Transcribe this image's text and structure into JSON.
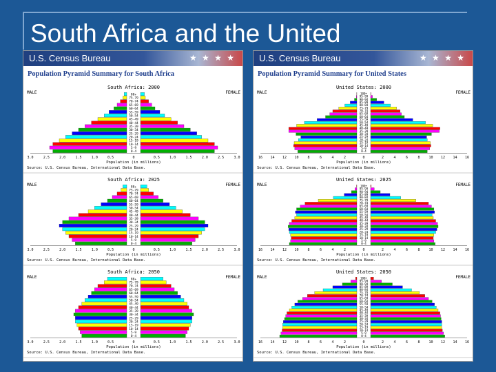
{
  "slide": {
    "title": "South Africa and the United"
  },
  "colors": {
    "background": "#1c5896",
    "panel_heading": "#1d3d8c",
    "bar_cycle": [
      "#00b000",
      "#ff00ff",
      "#ff0000",
      "#ffff00",
      "#00ffff",
      "#0000ff"
    ]
  },
  "panels": [
    {
      "banner": "U.S. Census Bureau",
      "heading": "Population Pyramid Summary for South Africa"
    },
    {
      "banner": "U.S. Census Bureau",
      "heading": "Population Pyramid Summary for United States"
    }
  ],
  "chart_data": [
    {
      "type": "bar",
      "title": "South Africa: 2000",
      "left_label": "MALE",
      "right_label": "FEMALE",
      "xlabel": "Population (in millions)",
      "source": "Source: U.S. Census Bureau, International Data Base.",
      "xticks": [
        "3.0",
        "2.5",
        "2.0",
        "1.5",
        "1.0",
        "0.5",
        "0",
        "0.5",
        "1.0",
        "1.5",
        "2.0",
        "2.5",
        "3.0"
      ],
      "xmax": 3.0,
      "age_groups": [
        "0-4",
        "5-9",
        "10-14",
        "15-19",
        "20-24",
        "25-29",
        "30-34",
        "35-39",
        "40-44",
        "45-49",
        "50-54",
        "55-59",
        "60-64",
        "65-69",
        "70-74",
        "75-79",
        "80+"
      ],
      "series": [
        {
          "name": "MALE",
          "values": [
            2.3,
            2.4,
            2.3,
            2.1,
            1.9,
            1.7,
            1.5,
            1.3,
            1.1,
            0.9,
            0.7,
            0.55,
            0.4,
            0.3,
            0.2,
            0.12,
            0.08
          ]
        },
        {
          "name": "FEMALE",
          "values": [
            2.3,
            2.4,
            2.3,
            2.1,
            1.9,
            1.75,
            1.55,
            1.35,
            1.15,
            0.95,
            0.75,
            0.6,
            0.45,
            0.35,
            0.25,
            0.15,
            0.12
          ]
        }
      ]
    },
    {
      "type": "bar",
      "title": "South Africa: 2025",
      "left_label": "MALE",
      "right_label": "FEMALE",
      "xlabel": "Population (in millions)",
      "source": "Source: U.S. Census Bureau, International Data Base.",
      "xticks": [
        "3.0",
        "2.5",
        "2.0",
        "1.5",
        "1.0",
        "0.5",
        "0",
        "0.5",
        "1.0",
        "1.5",
        "2.0",
        "2.5",
        "3.0"
      ],
      "xmax": 3.0,
      "age_groups": [
        "0-4",
        "5-9",
        "10-14",
        "15-19",
        "20-24",
        "25-29",
        "30-34",
        "35-39",
        "40-44",
        "45-49",
        "50-54",
        "55-59",
        "60-64",
        "65-69",
        "70-74",
        "75-79",
        "80+"
      ],
      "series": [
        {
          "name": "MALE",
          "values": [
            1.6,
            1.7,
            1.8,
            1.9,
            2.0,
            2.1,
            2.0,
            1.8,
            1.5,
            1.2,
            1.0,
            0.8,
            0.6,
            0.45,
            0.3,
            0.18,
            0.12
          ]
        },
        {
          "name": "FEMALE",
          "values": [
            1.6,
            1.7,
            1.8,
            1.9,
            2.0,
            2.1,
            2.0,
            1.8,
            1.55,
            1.3,
            1.1,
            0.9,
            0.7,
            0.55,
            0.4,
            0.25,
            0.2
          ]
        }
      ]
    },
    {
      "type": "bar",
      "title": "South Africa: 2050",
      "left_label": "MALE",
      "right_label": "FEMALE",
      "xlabel": "Population (in millions)",
      "source": "Source: U.S. Census Bureau, International Data Base.",
      "xticks": [
        "3.0",
        "2.5",
        "2.0",
        "1.5",
        "1.0",
        "0.5",
        "0",
        "0.5",
        "1.0",
        "1.5",
        "2.0",
        "2.5",
        "3.0"
      ],
      "xmax": 3.0,
      "age_groups": [
        "0-4",
        "5-9",
        "10-14",
        "15-19",
        "20-24",
        "25-29",
        "30-34",
        "35-39",
        "40-44",
        "45-49",
        "50-54",
        "55-59",
        "60-64",
        "65-69",
        "70-74",
        "75-79",
        "80+"
      ],
      "series": [
        {
          "name": "MALE",
          "values": [
            1.4,
            1.45,
            1.5,
            1.55,
            1.6,
            1.6,
            1.65,
            1.6,
            1.5,
            1.4,
            1.3,
            1.2,
            1.1,
            1.0,
            0.9,
            0.7,
            0.6
          ]
        },
        {
          "name": "FEMALE",
          "values": [
            1.4,
            1.45,
            1.5,
            1.55,
            1.6,
            1.6,
            1.65,
            1.6,
            1.5,
            1.45,
            1.35,
            1.25,
            1.15,
            1.05,
            0.95,
            0.8,
            0.7
          ]
        }
      ]
    },
    {
      "type": "bar",
      "title": "United States: 2000",
      "left_label": "MALE",
      "right_label": "FEMALE",
      "xlabel": "Population (in millions)",
      "source": "Source: U.S. Census Bureau, International Data Base.",
      "xticks": [
        "16",
        "14",
        "12",
        "10",
        "8",
        "6",
        "4",
        "2",
        "0",
        "2",
        "4",
        "6",
        "8",
        "10",
        "12",
        "14",
        "16"
      ],
      "xmax": 16,
      "age_groups": [
        "0-4",
        "5-9",
        "10-14",
        "15-19",
        "20-24",
        "25-29",
        "30-34",
        "35-39",
        "40-44",
        "45-49",
        "50-54",
        "55-59",
        "60-64",
        "65-69",
        "70-74",
        "75-79",
        "80-84",
        "85-89",
        "90-94",
        "95-99",
        "100+"
      ],
      "series": [
        {
          "name": "MALE",
          "values": [
            9.8,
            10.3,
            10.5,
            10.4,
            9.7,
            9.3,
            10.1,
            11.3,
            11.3,
            10.0,
            8.7,
            6.6,
            5.2,
            4.5,
            4.0,
            3.0,
            2.0,
            1.1,
            0.4,
            0.1,
            0.02
          ]
        },
        {
          "name": "FEMALE",
          "values": [
            9.4,
            9.8,
            10.0,
            9.9,
            9.4,
            9.3,
            10.1,
            11.4,
            11.5,
            10.3,
            9.1,
            7.0,
            5.6,
            5.1,
            4.9,
            4.3,
            3.3,
            2.2,
            1.0,
            0.3,
            0.05
          ]
        }
      ]
    },
    {
      "type": "bar",
      "title": "United States: 2025",
      "left_label": "MALE",
      "right_label": "FEMALE",
      "xlabel": "Population (in millions)",
      "source": "Source: U.S. Census Bureau, International Data Base.",
      "xticks": [
        "16",
        "14",
        "12",
        "10",
        "8",
        "6",
        "4",
        "2",
        "0",
        "2",
        "4",
        "6",
        "8",
        "10",
        "12",
        "14",
        "16"
      ],
      "xmax": 16,
      "age_groups": [
        "0-4",
        "5-9",
        "10-14",
        "15-19",
        "20-24",
        "25-29",
        "30-34",
        "35-39",
        "40-44",
        "45-49",
        "50-54",
        "55-59",
        "60-64",
        "65-69",
        "70-74",
        "75-79",
        "80-84",
        "85-89",
        "90-94",
        "95-99",
        "100+"
      ],
      "series": [
        {
          "name": "MALE",
          "values": [
            11.2,
            11.0,
            10.9,
            11.0,
            11.2,
            11.3,
            11.4,
            11.2,
            10.8,
            10.3,
            10.0,
            10.2,
            10.0,
            9.4,
            8.6,
            6.4,
            3.9,
            2.1,
            0.9,
            0.3,
            0.05
          ]
        },
        {
          "name": "FEMALE",
          "values": [
            10.7,
            10.5,
            10.4,
            10.5,
            10.8,
            11.0,
            11.2,
            11.1,
            10.8,
            10.4,
            10.2,
            10.6,
            10.5,
            10.1,
            9.6,
            7.5,
            5.0,
            3.2,
            1.6,
            0.6,
            0.1
          ]
        }
      ]
    },
    {
      "type": "bar",
      "title": "United States: 2050",
      "left_label": "MALE",
      "right_label": "FEMALE",
      "xlabel": "Population (in millions)",
      "source": "Source: U.S. Census Bureau, International Data Base.",
      "xticks": [
        "16",
        "14",
        "12",
        "10",
        "8",
        "6",
        "4",
        "2",
        "0",
        "2",
        "4",
        "6",
        "8",
        "10",
        "12",
        "14",
        "16"
      ],
      "xmax": 16,
      "age_groups": [
        "0-4",
        "5-9",
        "10-14",
        "15-19",
        "20-24",
        "25-29",
        "30-34",
        "35-39",
        "40-44",
        "45-49",
        "50-54",
        "55-59",
        "60-64",
        "65-69",
        "70-74",
        "75-79",
        "80-84",
        "85-89",
        "90-94",
        "95-99",
        "100+"
      ],
      "series": [
        {
          "name": "MALE",
          "values": [
            12.8,
            12.6,
            12.4,
            12.3,
            12.3,
            12.2,
            12.0,
            11.8,
            11.6,
            11.2,
            10.8,
            10.3,
            9.8,
            9.0,
            8.2,
            7.0,
            5.6,
            4.0,
            2.4,
            1.0,
            0.2
          ]
        },
        {
          "name": "FEMALE",
          "values": [
            12.3,
            12.1,
            11.9,
            11.8,
            11.8,
            11.8,
            11.7,
            11.6,
            11.5,
            11.2,
            10.9,
            10.6,
            10.2,
            9.6,
            9.0,
            8.1,
            6.8,
            5.3,
            3.6,
            1.8,
            0.5
          ]
        }
      ]
    }
  ]
}
